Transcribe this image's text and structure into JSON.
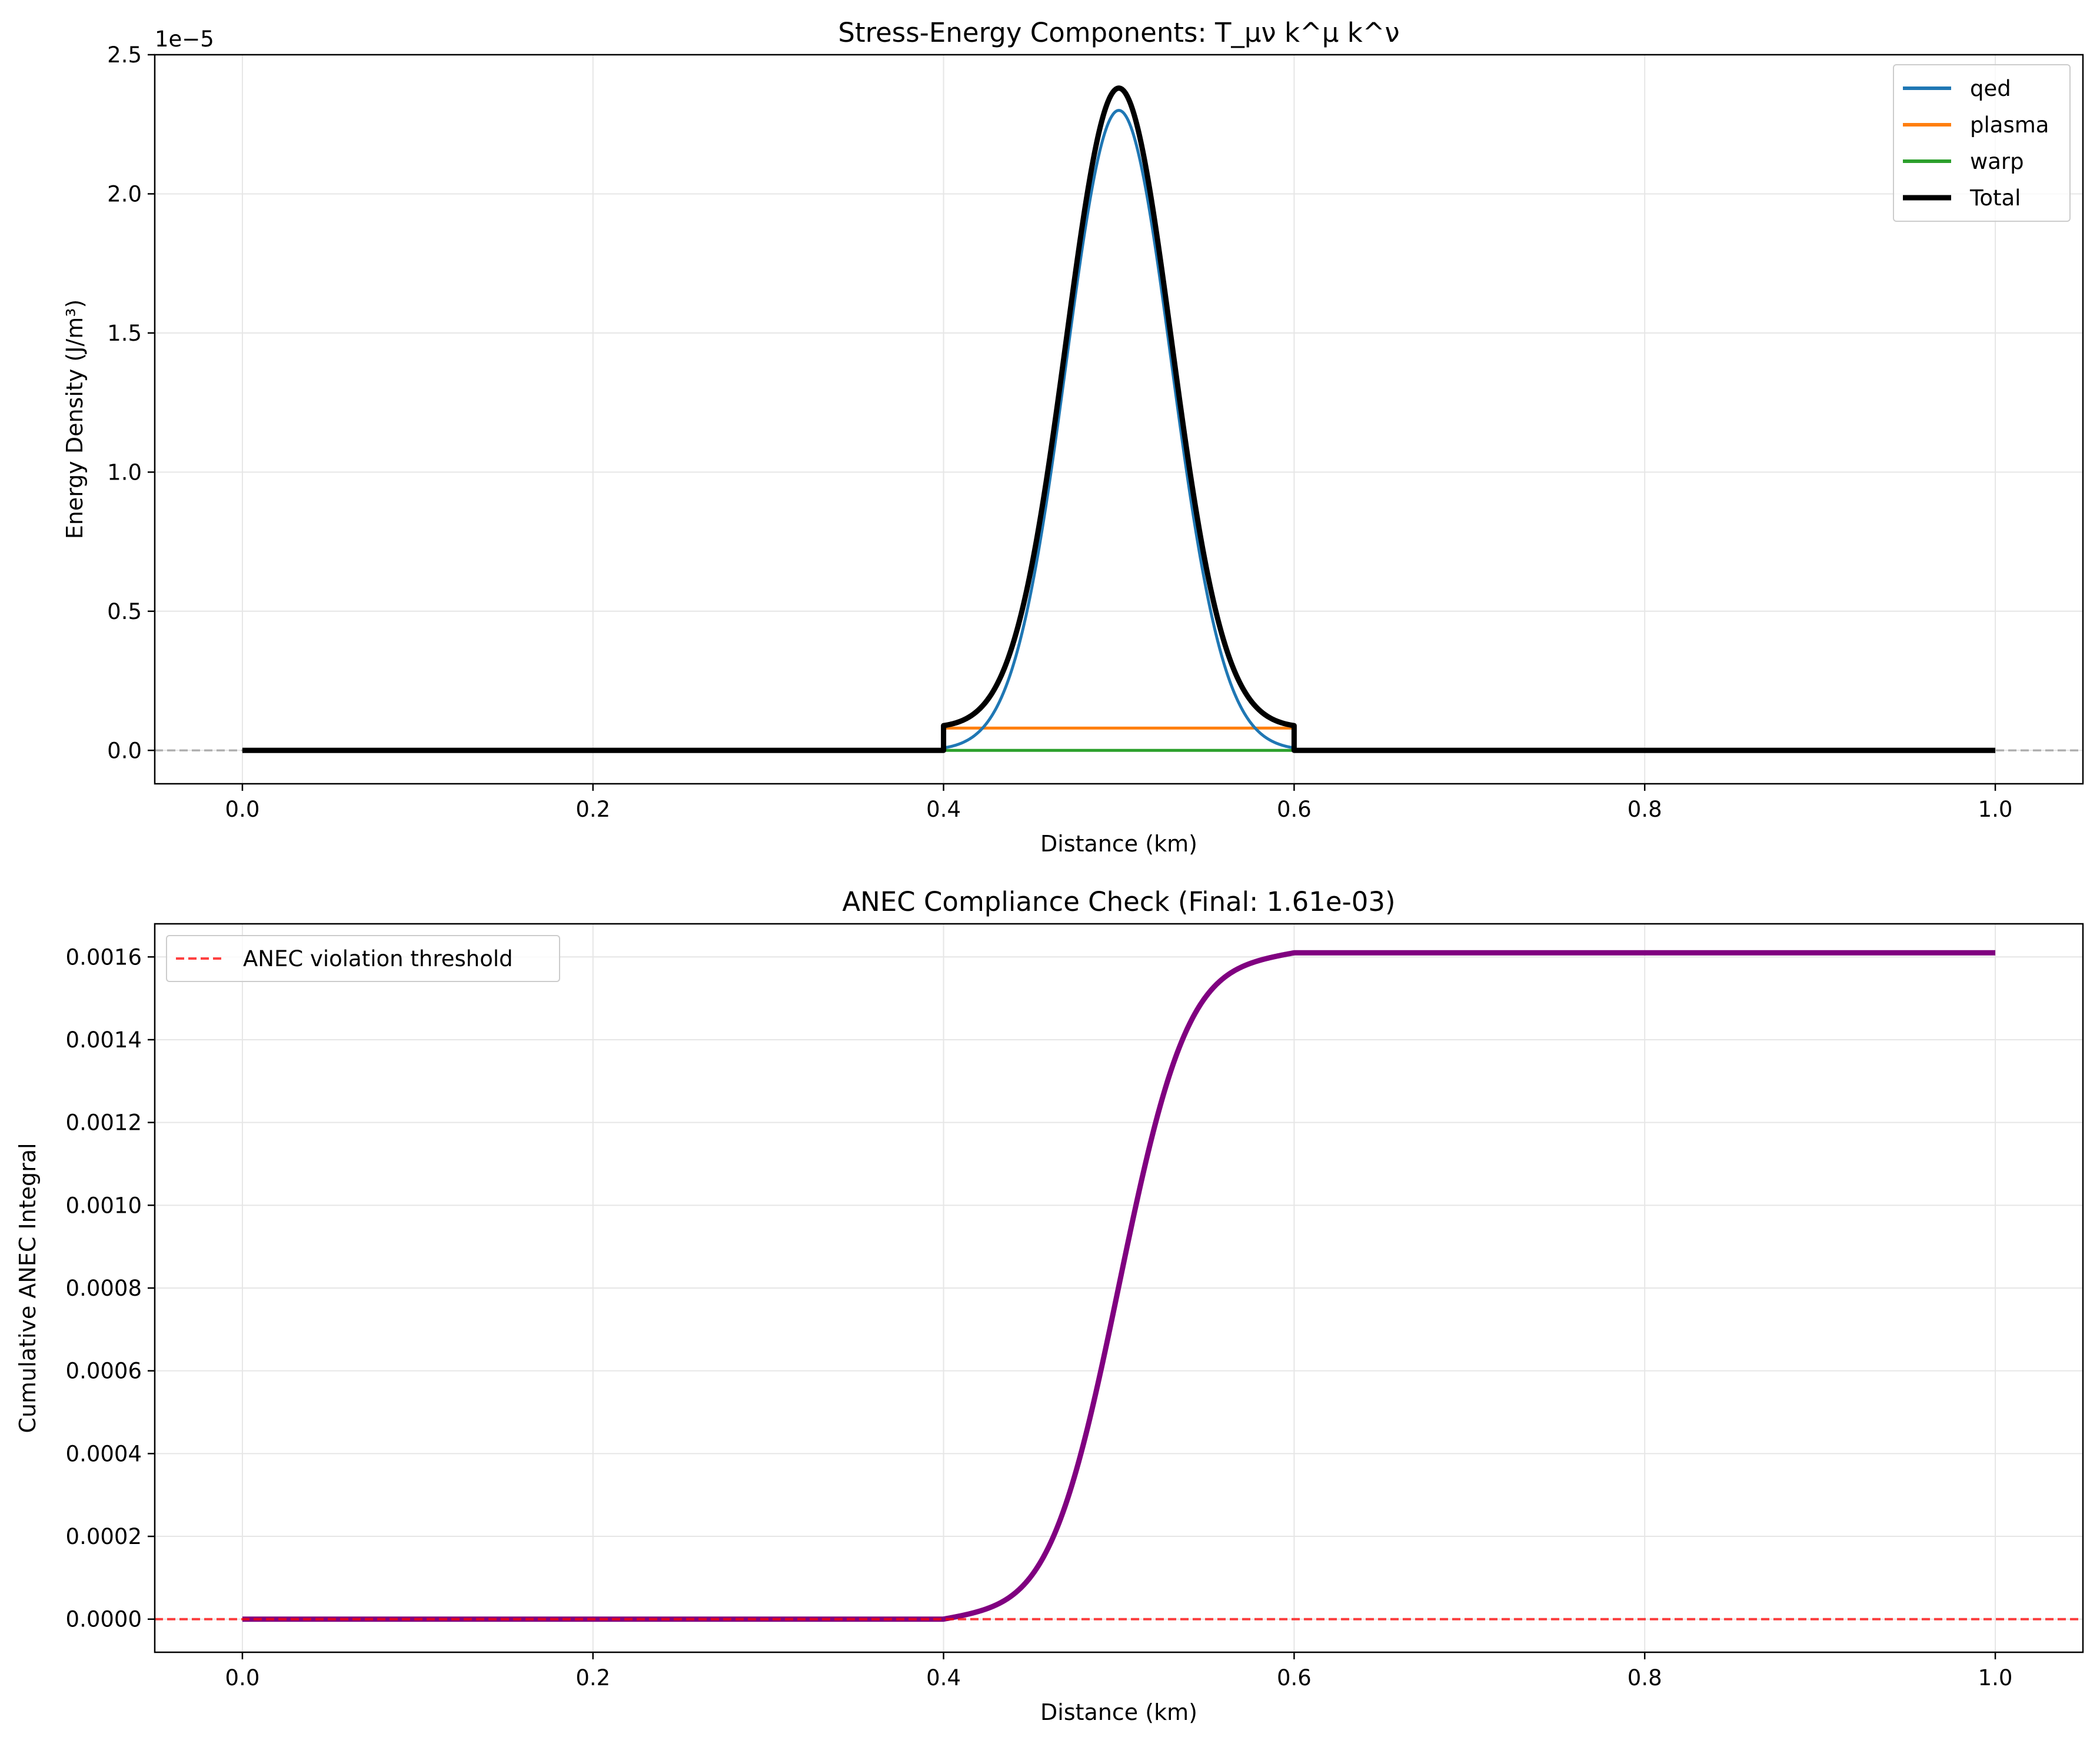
{
  "chart_data": [
    {
      "type": "line",
      "title": "Stress-Energy Components: T_μν k^μ k^ν",
      "xlabel": "Distance (km)",
      "ylabel": "Energy Density (J/m³)",
      "offset_text": "1e−5",
      "xlim": [
        -0.05,
        1.05
      ],
      "ylim": [
        -0.12,
        2.5
      ],
      "y_scale_factor": 1e-05,
      "xticks": [
        0.0,
        0.2,
        0.4,
        0.6,
        0.8,
        1.0
      ],
      "xtick_labels": [
        "0.0",
        "0.2",
        "0.4",
        "0.6",
        "0.8",
        "1.0"
      ],
      "yticks": [
        0.0,
        0.5,
        1.0,
        1.5,
        2.0,
        2.5
      ],
      "ytick_labels": [
        "0.0",
        "0.5",
        "1.0",
        "1.5",
        "2.0",
        "2.5"
      ],
      "grid": true,
      "legend_position": "top-right",
      "reference_line": {
        "y": 0,
        "style": "dashed",
        "color": "#b0b0b0"
      },
      "series": [
        {
          "name": "qed",
          "color": "#1f77b4",
          "shape": "gaussian",
          "peak_x": 0.5,
          "peak": 2.3,
          "sigma": 0.03,
          "x_range": [
            0.4,
            0.6
          ],
          "outside_value": 0
        },
        {
          "name": "plasma",
          "color": "#ff7f0e",
          "shape": "step",
          "x_range": [
            0.4,
            0.6
          ],
          "value": 0.08,
          "outside_value": 0
        },
        {
          "name": "warp",
          "color": "#2ca02c",
          "shape": "constant",
          "value": 0
        },
        {
          "name": "Total",
          "color": "#000000",
          "shape": "gaussian-plus-step",
          "peak_x": 0.5,
          "peak": 2.38,
          "sigma": 0.03,
          "x_range": [
            0.4,
            0.6
          ],
          "step_value": 0.08,
          "outside_value": 0
        }
      ]
    },
    {
      "type": "line",
      "title": "ANEC Compliance Check (Final: 1.61e-03)",
      "xlabel": "Distance (km)",
      "ylabel": "Cumulative ANEC Integral",
      "xlim": [
        -0.05,
        1.05
      ],
      "ylim": [
        -8e-05,
        0.00168
      ],
      "xticks": [
        0.0,
        0.2,
        0.4,
        0.6,
        0.8,
        1.0
      ],
      "xtick_labels": [
        "0.0",
        "0.2",
        "0.4",
        "0.6",
        "0.8",
        "1.0"
      ],
      "yticks": [
        0.0,
        0.0002,
        0.0004,
        0.0006,
        0.0008,
        0.001,
        0.0012,
        0.0014,
        0.0016
      ],
      "ytick_labels": [
        "0.0000",
        "0.0002",
        "0.0004",
        "0.0006",
        "0.0008",
        "0.0010",
        "0.0012",
        "0.0014",
        "0.0016"
      ],
      "grid": true,
      "legend_position": "top-left",
      "series": [
        {
          "name": "",
          "color": "#800080",
          "shape": "cumulative",
          "x_range": [
            0.4,
            0.6
          ],
          "final_value": 0.00161
        }
      ],
      "threshold": {
        "name": "ANEC violation threshold",
        "y": 0,
        "color": "#ff0000",
        "style": "dashed"
      }
    }
  ]
}
